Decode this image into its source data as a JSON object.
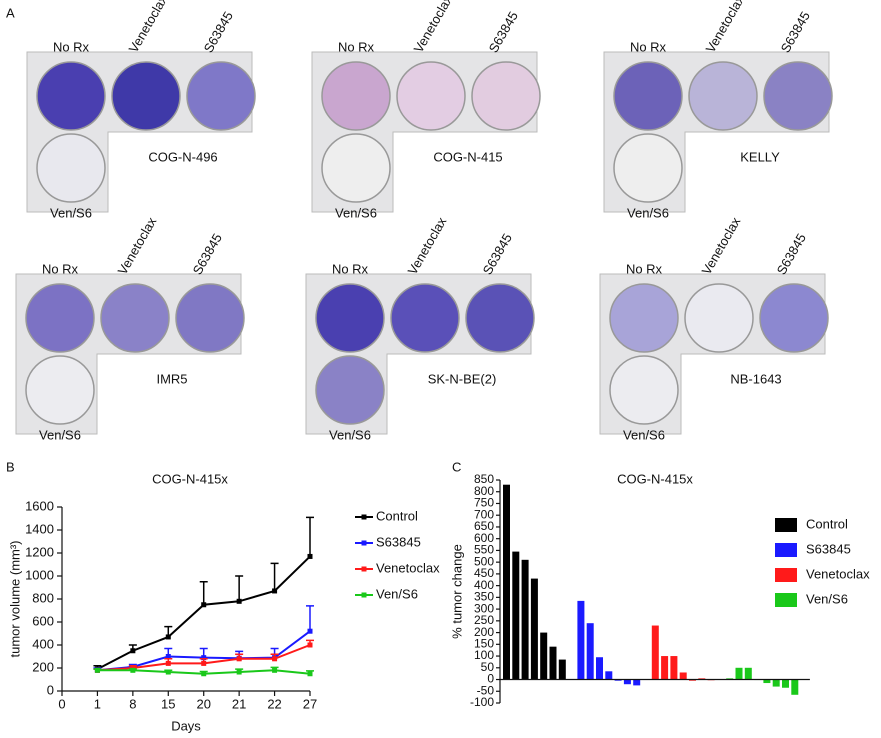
{
  "panel_a": {
    "label": "A",
    "plates": [
      {
        "name": "COG-N-496",
        "wells": [
          "No Rx",
          "Venetoclax",
          "S63845",
          "Ven/S6"
        ],
        "well_colors": [
          "#4a3fb0",
          "#3f39a8",
          "#7f78c8",
          "#e8e8ee"
        ]
      },
      {
        "name": "COG-N-415",
        "wells": [
          "No Rx",
          "Venetoclax",
          "S63845",
          "Ven/S6"
        ],
        "well_colors": [
          "#c9a6cf",
          "#e3cde3",
          "#e2cce0",
          "#eeeeee"
        ]
      },
      {
        "name": "KELLY",
        "wells": [
          "No Rx",
          "Venetoclax",
          "S63845",
          "Ven/S6"
        ],
        "well_colors": [
          "#6c62b8",
          "#b9b4d8",
          "#8a82c4",
          "#eeeeee"
        ]
      },
      {
        "name": "IMR5",
        "wells": [
          "No Rx",
          "Venetoclax",
          "S63845",
          "Ven/S6"
        ],
        "well_colors": [
          "#7c72c4",
          "#8a82c8",
          "#8078c4",
          "#ececf0"
        ]
      },
      {
        "name": "SK-N-BE(2)",
        "wells": [
          "No Rx",
          "Venetoclax",
          "S63845",
          "Ven/S6"
        ],
        "well_colors": [
          "#4a40b0",
          "#5a50b8",
          "#5a52b6",
          "#8a82c6"
        ]
      },
      {
        "name": "NB-1643",
        "wells": [
          "No Rx",
          "Venetoclax",
          "S63845",
          "Ven/S6"
        ],
        "well_colors": [
          "#a8a4d8",
          "#eaeaf0",
          "#8c88d0",
          "#ececf0"
        ]
      }
    ]
  },
  "chart_data": [
    {
      "type": "line",
      "panel_label": "B",
      "title": "COG-N-415x",
      "x_label": "Days",
      "y_label": "tumor volume (mm³)",
      "categories": [
        "0",
        "1",
        "8",
        "15",
        "20",
        "21",
        "22",
        "27"
      ],
      "ylim": [
        0,
        1600
      ],
      "yticks": [
        0,
        200,
        400,
        600,
        800,
        1000,
        1200,
        1400,
        1600
      ],
      "series": [
        {
          "name": "Control",
          "color": "#000000",
          "values": [
            null,
            190,
            350,
            470,
            750,
            780,
            870,
            1170
          ],
          "errors": [
            null,
            30,
            50,
            90,
            200,
            220,
            240,
            340
          ]
        },
        {
          "name": "S63845",
          "color": "#1a1aff",
          "values": [
            null,
            180,
            210,
            300,
            290,
            285,
            290,
            520
          ],
          "errors": [
            null,
            20,
            20,
            70,
            80,
            60,
            80,
            220
          ]
        },
        {
          "name": "Venetoclax",
          "color": "#ff1a1a",
          "values": [
            null,
            180,
            200,
            240,
            240,
            280,
            280,
            400
          ],
          "errors": [
            null,
            10,
            20,
            40,
            40,
            40,
            40,
            40
          ]
        },
        {
          "name": "Ven/S6",
          "color": "#1ac81a",
          "values": [
            null,
            180,
            180,
            165,
            150,
            165,
            180,
            150
          ],
          "errors": [
            null,
            10,
            10,
            15,
            20,
            25,
            25,
            25
          ]
        }
      ]
    },
    {
      "type": "bar",
      "panel_label": "C",
      "title": "COG-N-415x",
      "y_label": "% tumor change",
      "ylim": [
        -100,
        850
      ],
      "yticks": [
        -100,
        -50,
        0,
        50,
        100,
        150,
        200,
        250,
        300,
        350,
        400,
        450,
        500,
        550,
        600,
        650,
        700,
        750,
        800,
        850
      ],
      "series": [
        {
          "name": "Control",
          "color": "#000000",
          "values": [
            830,
            545,
            510,
            430,
            200,
            140,
            85
          ]
        },
        {
          "name": "S63845",
          "color": "#1a1aff",
          "values": [
            335,
            240,
            95,
            35,
            -5,
            -20,
            -25
          ]
        },
        {
          "name": "Venetoclax",
          "color": "#ff1a1a",
          "values": [
            230,
            100,
            100,
            30,
            -5,
            5,
            -3
          ]
        },
        {
          "name": "Ven/S6",
          "color": "#1ac81a",
          "values": [
            5,
            50,
            50,
            0,
            -15,
            -30,
            -35,
            -65
          ]
        }
      ]
    }
  ]
}
